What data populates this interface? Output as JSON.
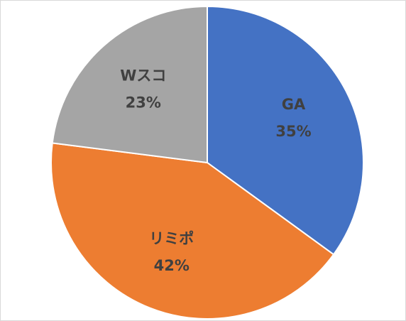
{
  "chart_data": {
    "type": "pie",
    "slices": [
      {
        "label": "GA",
        "value": 35,
        "value_label": "35%",
        "color": "#4472C4"
      },
      {
        "label": "リミポ",
        "value": 42,
        "value_label": "42%",
        "color": "#ED7D31"
      },
      {
        "label": "Wスコ",
        "value": 23,
        "value_label": "23%",
        "color": "#A5A5A5"
      }
    ],
    "start_angle": "12 o'clock",
    "direction": "clockwise",
    "legend": "none",
    "data_labels": "inside"
  }
}
